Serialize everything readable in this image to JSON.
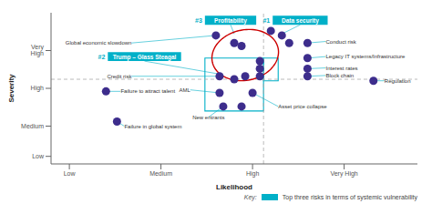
{
  "chart_data": {
    "type": "scatter",
    "xlabel": "Likelihood",
    "ylabel": "Severity",
    "xlim": [
      0,
      10
    ],
    "ylim": [
      0,
      10
    ],
    "xticks": [
      {
        "value": 0.5,
        "label": "Low"
      },
      {
        "value": 3.0,
        "label": "Medium"
      },
      {
        "value": 5.5,
        "label": "High"
      },
      {
        "value": 8.0,
        "label": "Very High"
      }
    ],
    "yticks": [
      {
        "value": 0.5,
        "label": "Low"
      },
      {
        "value": 2.5,
        "label": "Medium"
      },
      {
        "value": 5.0,
        "label": "High"
      },
      {
        "value": 7.5,
        "label": "Very High"
      }
    ],
    "color": "#3d2d8c",
    "points": [
      {
        "x": 4.5,
        "y": 8.5,
        "label": "Global economic slowdown",
        "label_x": 2.2,
        "label_y": 8.0,
        "align": "right"
      },
      {
        "x": 5.0,
        "y": 8.0
      },
      {
        "x": 5.2,
        "y": 7.8
      },
      {
        "x": 4.6,
        "y": 5.8,
        "label": "Credit risk",
        "label_x": 2.2,
        "label_y": 5.8,
        "align": "right"
      },
      {
        "x": 5.0,
        "y": 5.6
      },
      {
        "x": 5.3,
        "y": 5.8
      },
      {
        "x": 4.6,
        "y": 4.7,
        "label": "AML",
        "label_x": 3.8,
        "label_y": 4.9,
        "align": "right"
      },
      {
        "x": 4.7,
        "y": 3.8,
        "label": "New entrants",
        "label_x": 4.3,
        "label_y": 3.1,
        "align": "center"
      },
      {
        "x": 5.2,
        "y": 3.8
      },
      {
        "x": 5.5,
        "y": 4.7,
        "label": "Asset price collapse",
        "label_x": 6.2,
        "label_y": 3.8,
        "align": "left"
      },
      {
        "x": 5.7,
        "y": 5.8
      },
      {
        "x": 5.7,
        "y": 6.3
      },
      {
        "x": 5.7,
        "y": 6.8
      },
      {
        "x": 6.0,
        "y": 8.8
      },
      {
        "x": 6.3,
        "y": 8.5
      },
      {
        "x": 6.5,
        "y": 8.0
      },
      {
        "x": 7.0,
        "y": 8.0,
        "label": "Conduct risk",
        "label_x": 7.5,
        "label_y": 8.1,
        "align": "left"
      },
      {
        "x": 7.0,
        "y": 7.0,
        "label": "Legacy IT systems/Infrastructure",
        "label_x": 7.5,
        "label_y": 7.1,
        "align": "left"
      },
      {
        "x": 7.0,
        "y": 6.3,
        "label": "Interest rates",
        "label_x": 7.5,
        "label_y": 6.35,
        "align": "left"
      },
      {
        "x": 7.0,
        "y": 5.8,
        "label": "Block chain",
        "label_x": 7.5,
        "label_y": 5.85,
        "align": "left"
      },
      {
        "x": 8.8,
        "y": 5.5,
        "label": "Regulation",
        "label_x": 9.1,
        "label_y": 5.5,
        "align": "left"
      },
      {
        "x": 1.5,
        "y": 4.8,
        "label": "Failure to attract talent",
        "label_x": 1.9,
        "label_y": 4.8,
        "align": "left"
      },
      {
        "x": 1.8,
        "y": 2.8,
        "label": "Failure in global system",
        "label_x": 2.0,
        "label_y": 2.5,
        "align": "left"
      }
    ],
    "reference_lines": {
      "x": 5.8,
      "y": 5.6,
      "color": "#aaaaaa"
    },
    "rectangles": [
      {
        "x0": 4.2,
        "y0": 3.5,
        "x1": 5.8,
        "y1": 7.0
      },
      {
        "x0": 5.8,
        "y0": 5.5,
        "x1": 6.2,
        "y1": 7.0
      }
    ],
    "box_color": "#00b0c8",
    "ellipse": {
      "cx": 5.3,
      "cy": 7.2,
      "rx": 0.9,
      "ry": 1.7,
      "angle": -5,
      "color": "#cc0000"
    },
    "boxes": [
      {
        "cx": 4.9,
        "cy": 9.5,
        "w": 1.4,
        "h": 0.6,
        "label": "Profitability",
        "rank": "#3"
      },
      {
        "cx": 6.8,
        "cy": 9.5,
        "w": 1.5,
        "h": 0.6,
        "label": "Data security",
        "rank": "#1"
      },
      {
        "cx": 2.55,
        "cy": 7.1,
        "w": 2.0,
        "h": 0.6,
        "label": "Trump – Glass Steagal",
        "rank": "#2"
      }
    ],
    "connectors": [
      [
        4.9,
        9.2,
        5.0,
        8.6
      ],
      [
        6.8,
        9.2,
        6.3,
        8.6
      ],
      [
        2.55,
        6.8,
        4.7,
        5.9
      ]
    ],
    "key": {
      "title": "Key:",
      "label": "Top three risks in terms of systemic vulnerability"
    }
  }
}
